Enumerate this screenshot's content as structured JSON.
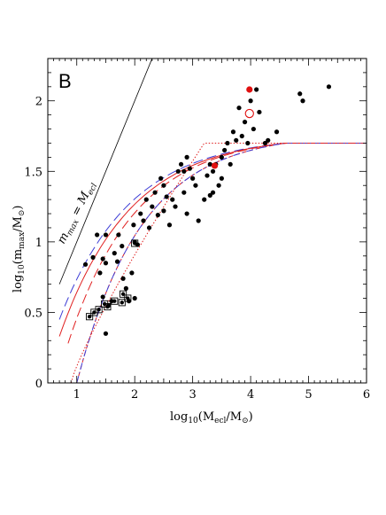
{
  "chart_data": {
    "type": "scatter",
    "panel_label": "B",
    "xlabel": {
      "pre": "log",
      "pre_sub": "10",
      "mid": "(M",
      "mid_sub": "ecl",
      "post": "/M",
      "post_sub": "⊙",
      "end": ")"
    },
    "ylabel": {
      "pre": "log",
      "pre_sub": "10",
      "mid": "(m",
      "mid_sub": "max",
      "post": "/M",
      "post_sub": "⊙",
      "end": ")"
    },
    "annotation": {
      "pre": "m",
      "pre_sub": "max",
      "mid": " = M",
      "mid_sub": "ecl"
    },
    "xlim": [
      0.5,
      6
    ],
    "ylim": [
      0,
      2.3
    ],
    "x_ticks": [
      "1",
      "2",
      "3",
      "4",
      "5",
      "6"
    ],
    "y_ticks": [
      "0",
      "0.5",
      "1",
      "1.5",
      "2"
    ],
    "grid": false,
    "points": [
      [
        1.15,
        0.84
      ],
      [
        1.28,
        0.89
      ],
      [
        1.35,
        1.05
      ],
      [
        1.4,
        0.78
      ],
      [
        1.45,
        0.88
      ],
      [
        1.5,
        1.05
      ],
      [
        1.5,
        0.85
      ],
      [
        1.55,
        0.55
      ],
      [
        1.45,
        0.61
      ],
      [
        1.6,
        0.58
      ],
      [
        1.65,
        0.92
      ],
      [
        1.7,
        0.86
      ],
      [
        1.72,
        1.05
      ],
      [
        1.78,
        0.97
      ],
      [
        1.8,
        0.74
      ],
      [
        1.85,
        0.67
      ],
      [
        1.9,
        0.58
      ],
      [
        1.95,
        0.78
      ],
      [
        1.98,
        1.12
      ],
      [
        2.0,
        1.0
      ],
      [
        2.05,
        0.98
      ],
      [
        2.0,
        0.6
      ],
      [
        2.1,
        1.2
      ],
      [
        2.15,
        1.15
      ],
      [
        2.2,
        1.3
      ],
      [
        2.25,
        1.1
      ],
      [
        2.3,
        1.25
      ],
      [
        2.35,
        1.35
      ],
      [
        2.4,
        1.19
      ],
      [
        2.45,
        1.45
      ],
      [
        2.5,
        1.22
      ],
      [
        2.5,
        1.4
      ],
      [
        2.55,
        1.32
      ],
      [
        2.6,
        1.12
      ],
      [
        2.65,
        1.3
      ],
      [
        2.7,
        1.25
      ],
      [
        2.75,
        1.5
      ],
      [
        2.8,
        1.55
      ],
      [
        2.85,
        1.5
      ],
      [
        2.9,
        1.6
      ],
      [
        2.85,
        1.35
      ],
      [
        2.95,
        1.52
      ],
      [
        3.0,
        1.45
      ],
      [
        2.9,
        1.2
      ],
      [
        3.05,
        1.4
      ],
      [
        3.1,
        1.15
      ],
      [
        3.2,
        1.3
      ],
      [
        3.25,
        1.47
      ],
      [
        3.3,
        1.55
      ],
      [
        3.35,
        1.5
      ],
      [
        3.4,
        1.55
      ],
      [
        3.45,
        1.4
      ],
      [
        3.35,
        1.35
      ],
      [
        3.5,
        1.6
      ],
      [
        3.55,
        1.65
      ],
      [
        3.6,
        1.7
      ],
      [
        3.65,
        1.55
      ],
      [
        3.7,
        1.78
      ],
      [
        3.75,
        1.72
      ],
      [
        3.8,
        1.95
      ],
      [
        3.85,
        1.75
      ],
      [
        3.9,
        1.85
      ],
      [
        3.95,
        1.7
      ],
      [
        4.0,
        2.0
      ],
      [
        4.05,
        1.8
      ],
      [
        4.1,
        2.08
      ],
      [
        4.15,
        1.92
      ],
      [
        4.25,
        1.7
      ],
      [
        4.3,
        1.72
      ],
      [
        4.45,
        1.78
      ],
      [
        4.85,
        2.05
      ],
      [
        4.9,
        2.0
      ],
      [
        5.35,
        2.1
      ],
      [
        3.3,
        1.33
      ],
      [
        3.5,
        1.45
      ],
      [
        1.5,
        0.35
      ]
    ],
    "boxed_points": [
      [
        1.22,
        0.47
      ],
      [
        1.3,
        0.5
      ],
      [
        1.38,
        0.52
      ],
      [
        1.48,
        0.56
      ],
      [
        1.53,
        0.54
      ],
      [
        1.65,
        0.58
      ],
      [
        1.78,
        0.57
      ],
      [
        1.8,
        0.63
      ],
      [
        1.88,
        0.6
      ],
      [
        2.0,
        0.99
      ]
    ],
    "highlight_filled": [
      [
        3.38,
        1.54
      ],
      [
        3.98,
        2.08
      ]
    ],
    "highlight_open": [
      [
        3.98,
        1.91
      ]
    ],
    "curves": [
      {
        "name": "blue-long-dash-upper",
        "color": "#3d3dd6",
        "style": "long-dash",
        "shape": "sigmoid",
        "x0": 0.7,
        "y0": 0.45,
        "x1": 6.0,
        "y1": 1.7
      },
      {
        "name": "red-solid",
        "color": "#e02020",
        "style": "solid",
        "shape": "sigmoid",
        "x0": 0.7,
        "y0": 0.33,
        "x1": 6.0,
        "y1": 1.7
      },
      {
        "name": "red-long-dash",
        "color": "#e02020",
        "style": "long-dash",
        "shape": "sigmoid",
        "x0": 0.85,
        "y0": 0.28,
        "x1": 6.0,
        "y1": 1.7
      },
      {
        "name": "red-short-dash",
        "color": "#e02020",
        "style": "short-dash",
        "shape": "sigmoid",
        "x0": 1.0,
        "y0": 0.0,
        "x1": 6.0,
        "y1": 1.7
      },
      {
        "name": "blue-dash-dot",
        "color": "#3d3dd6",
        "style": "dash-dot",
        "shape": "sigmoid",
        "x0": 1.0,
        "y0": 0.0,
        "x1": 6.0,
        "y1": 1.7
      },
      {
        "name": "red-dotted",
        "color": "#e02020",
        "style": "dotted",
        "shape": "steep",
        "x0": 0.9,
        "y0": 0.0,
        "x1": 6.0,
        "y1": 1.7
      }
    ],
    "reference_line": {
      "from": [
        0.7,
        0.7
      ],
      "to": [
        2.3,
        2.3
      ]
    }
  }
}
